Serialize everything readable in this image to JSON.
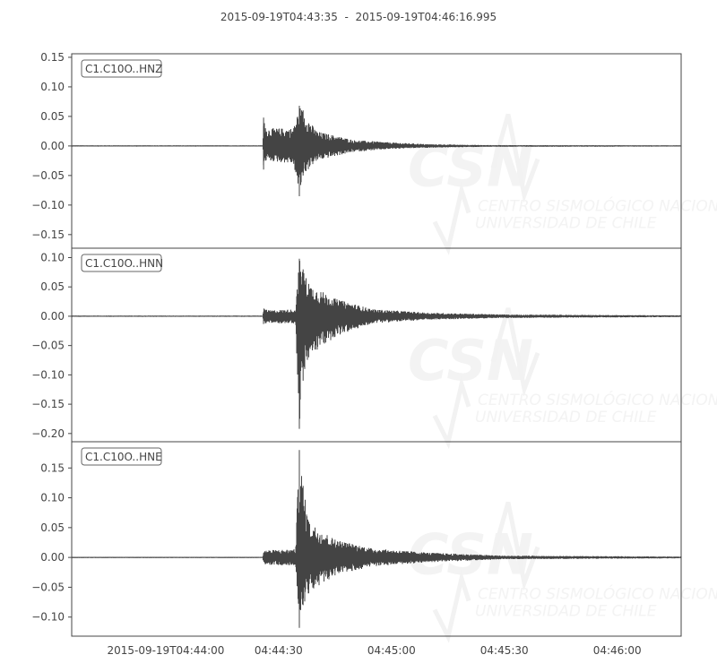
{
  "title_start": "2015-09-19T04:43:35",
  "title_sep": "-",
  "title_end": "2015-09-19T04:46:16.995",
  "watermark": {
    "logo": "CSN",
    "line1": "CENTRO SISMOLÓGICO NACIONAL",
    "line2": "UNIVERSIDAD DE CHILE"
  },
  "colors": {
    "trace": "#444444",
    "axes": "#444444",
    "watermark": "#f2f2f2"
  },
  "chart_data": {
    "type": "line",
    "xlim": [
      "04:43:35",
      "04:46:16.995"
    ],
    "x_ticks": [
      {
        "t": "04:44:00",
        "label": "2015-09-19T04:44:00"
      },
      {
        "t": "04:44:30",
        "label": "04:44:30"
      },
      {
        "t": "04:45:00",
        "label": "04:45:00"
      },
      {
        "t": "04:45:30",
        "label": "04:45:30"
      },
      {
        "t": "04:46:00",
        "label": "04:46:00"
      }
    ],
    "grid": false,
    "series": [
      {
        "name": "C1.C10O..HNZ",
        "ylim": [
          -0.173,
          0.156
        ],
        "y_ticks": [
          "0.15",
          "0.10",
          "0.05",
          "0.00",
          "−0.05",
          "−0.10",
          "−0.15"
        ],
        "y_tick_values": [
          0.15,
          0.1,
          0.05,
          0.0,
          -0.05,
          -0.1,
          -0.15
        ],
        "envelope": [
          [
            "04:43:35",
            0.001,
            -0.001
          ],
          [
            "04:44:25.8",
            0.001,
            -0.001
          ],
          [
            "04:44:26",
            0.048,
            -0.04
          ],
          [
            "04:44:26.5",
            0.03,
            -0.025
          ],
          [
            "04:44:34",
            0.03,
            -0.03
          ],
          [
            "04:44:35.5",
            0.068,
            -0.085
          ],
          [
            "04:44:36.5",
            0.06,
            -0.05
          ],
          [
            "04:44:40",
            0.025,
            -0.025
          ],
          [
            "04:44:50",
            0.01,
            -0.01
          ],
          [
            "04:45:00",
            0.006,
            -0.005
          ],
          [
            "04:45:10",
            0.003,
            -0.003
          ],
          [
            "04:45:25",
            0.0015,
            -0.0015
          ],
          [
            "04:46:16.995",
            0.001,
            -0.001
          ]
        ]
      },
      {
        "name": "C1.C10O..HNN",
        "ylim": [
          -0.214,
          0.116
        ],
        "y_ticks": [
          "0.10",
          "0.05",
          "0.00",
          "−0.05",
          "−0.10",
          "−0.15",
          "−0.20"
        ],
        "y_tick_values": [
          0.1,
          0.05,
          0.0,
          -0.05,
          -0.1,
          -0.15,
          -0.2
        ],
        "envelope": [
          [
            "04:43:35",
            0.001,
            -0.001
          ],
          [
            "04:44:25.8",
            0.001,
            -0.001
          ],
          [
            "04:44:26",
            0.015,
            -0.015
          ],
          [
            "04:44:27",
            0.01,
            -0.012
          ],
          [
            "04:44:34.5",
            0.012,
            -0.012
          ],
          [
            "04:44:35.5",
            0.098,
            -0.192
          ],
          [
            "04:44:36.5",
            0.08,
            -0.11
          ],
          [
            "04:44:38",
            0.055,
            -0.07
          ],
          [
            "04:44:45",
            0.03,
            -0.035
          ],
          [
            "04:44:55",
            0.012,
            -0.012
          ],
          [
            "04:45:10",
            0.006,
            -0.006
          ],
          [
            "04:45:30",
            0.003,
            -0.003
          ],
          [
            "04:46:16.995",
            0.0015,
            -0.0015
          ]
        ]
      },
      {
        "name": "C1.C10O..HNE",
        "ylim": [
          -0.132,
          0.194
        ],
        "y_ticks": [
          "0.15",
          "0.10",
          "0.05",
          "0.00",
          "−0.05",
          "−0.10"
        ],
        "y_tick_values": [
          0.15,
          0.1,
          0.05,
          0.0,
          -0.05,
          -0.1
        ],
        "envelope": [
          [
            "04:43:35",
            0.001,
            -0.001
          ],
          [
            "04:44:25.8",
            0.001,
            -0.001
          ],
          [
            "04:44:26",
            0.012,
            -0.012
          ],
          [
            "04:44:34.5",
            0.014,
            -0.014
          ],
          [
            "04:44:35.5",
            0.18,
            -0.118
          ],
          [
            "04:44:36.5",
            0.12,
            -0.08
          ],
          [
            "04:44:38",
            0.06,
            -0.06
          ],
          [
            "04:44:45",
            0.03,
            -0.03
          ],
          [
            "04:44:55",
            0.015,
            -0.015
          ],
          [
            "04:45:10",
            0.008,
            -0.008
          ],
          [
            "04:45:30",
            0.003,
            -0.003
          ],
          [
            "04:46:16.995",
            0.0015,
            -0.0015
          ]
        ]
      }
    ]
  }
}
